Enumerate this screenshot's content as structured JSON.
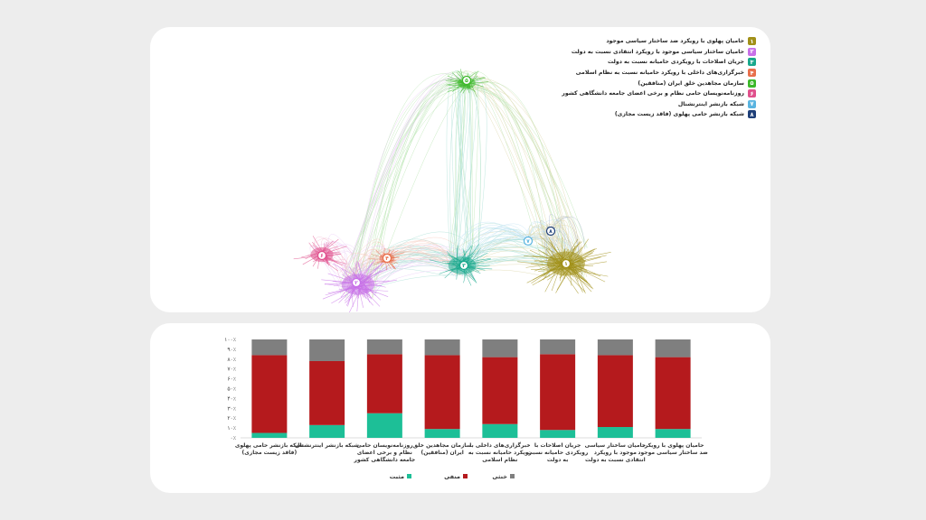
{
  "network": {
    "legend": [
      {
        "num": "۱",
        "label": "حامیان پهلوی با رویکرد ضد ساختار سیاسی موجود",
        "color": "#a19018"
      },
      {
        "num": "۲",
        "label": "حامیان ساختار سیاسی موجود با رویکرد انتقادی نسبت به دولت",
        "color": "#c770e8"
      },
      {
        "num": "۳",
        "label": "جریان اصلاحات با رویکردی حامیانه نسبت به دولت",
        "color": "#18a88c"
      },
      {
        "num": "۴",
        "label": "خبرگزاری‌های داخلی با رویکرد حامیانه نسبت به نظام اسلامی",
        "color": "#e8704c"
      },
      {
        "num": "۵",
        "label": "سازمان مجاهدین خلق ایران (منافقین)",
        "color": "#3cb82a"
      },
      {
        "num": "۶",
        "label": "روزنامه‌نویسان حامی نظام و برخی اعضای جامعه دانشگاهی کشور",
        "color": "#e0508c"
      },
      {
        "num": "۷",
        "label": "شبکه بازنشر اینترنشنال",
        "color": "#5ab4e0"
      },
      {
        "num": "۸",
        "label": "شبکه بازنشر حامی پهلوی (فاقد زیست مجازی)",
        "color": "#1e3f78"
      }
    ]
  },
  "chart_data": {
    "type": "bar",
    "stacked": true,
    "percent": true,
    "categories": [
      "حامیان پهلوی با رویکرد ضد ساختار سیاسی موجود",
      "حامیان ساختار سیاسی موجود با رویکرد انتقادی نسبت به دولت",
      "جریان اصلاحات با رویکردی حامیانه نسبت به دولت",
      "خبرگزاری‌های داخلی با رویکرد حامیانه نسبت به نظام اسلامی",
      "سازمان مجاهدین خلق ایران (منافقین)",
      "روزنامه‌نویسان حامی نظام و برخی اعضای جامعه دانشگاهی کشور",
      "شبکه بازنشر اینترنشنال",
      "شبکه بازنشر حامی پهلوی (فاقد زیست مجازی)"
    ],
    "series": [
      {
        "name": "مثبت",
        "color": "#1dbf97",
        "values": [
          9,
          11,
          8,
          14,
          9,
          25,
          13,
          5
        ]
      },
      {
        "name": "منفی",
        "color": "#b51a1d",
        "values": [
          73,
          73,
          77,
          68,
          75,
          60,
          65,
          79
        ]
      },
      {
        "name": "خنثی",
        "color": "#7f7f7f",
        "values": [
          18,
          16,
          15,
          18,
          16,
          15,
          22,
          16
        ]
      }
    ],
    "yticks": [
      "۰٪",
      "۱۰٪",
      "۲۰٪",
      "۳۰٪",
      "۴۰٪",
      "۵۰٪",
      "۶۰٪",
      "۷۰٪",
      "۸۰٪",
      "۹۰٪",
      "۱۰۰٪"
    ],
    "ylim": [
      0,
      100
    ],
    "legend_position": "bottom",
    "grid": false
  }
}
